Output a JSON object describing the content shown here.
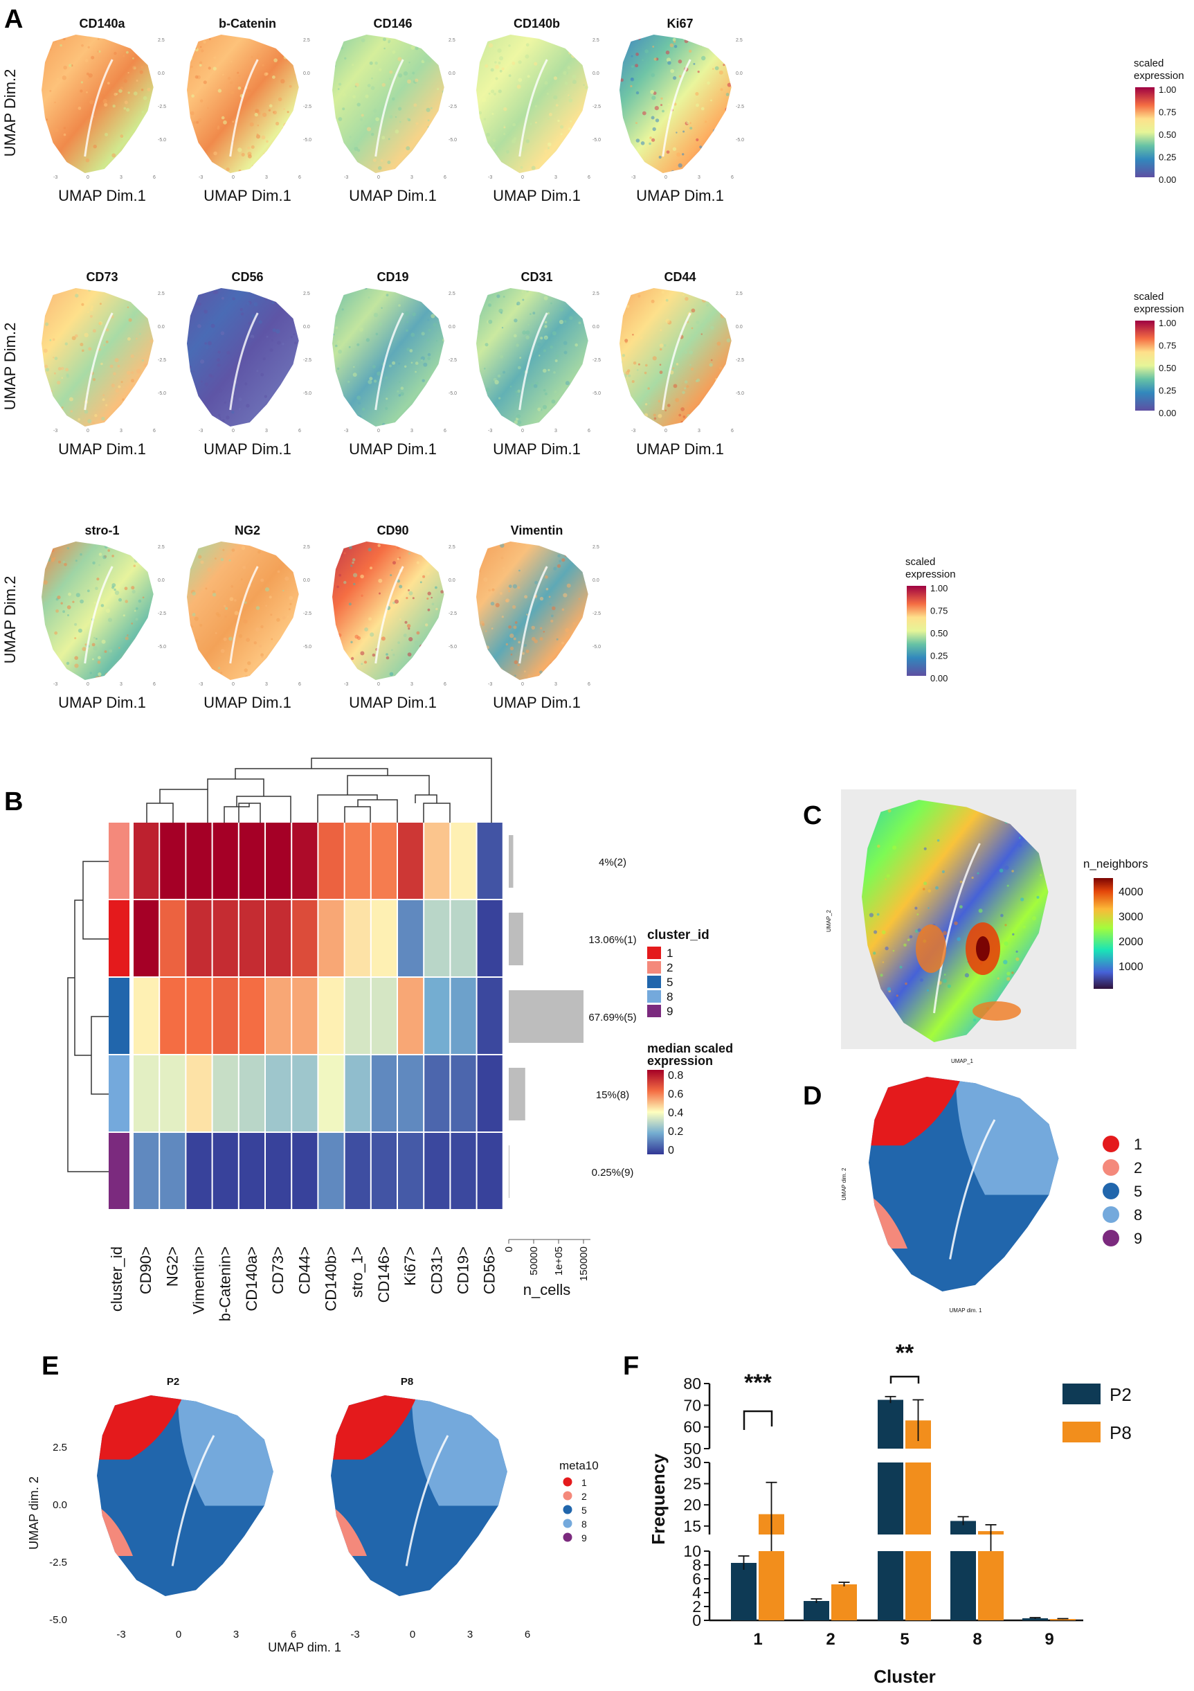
{
  "panels": {
    "A": {
      "letter": "A",
      "markers_row1": [
        "CD140a",
        "b-Catenin",
        "CD146",
        "CD140b",
        "Ki67"
      ],
      "markers_row2": [
        "CD73",
        "CD56",
        "CD19",
        "CD31",
        "CD44"
      ],
      "markers_row3": [
        "stro-1",
        "NG2",
        "CD90",
        "Vimentin"
      ],
      "xlabel": "UMAP Dim.1",
      "ylabel": "UMAP Dim.2",
      "legend_title_1": "scaled",
      "legend_title_2": "expression",
      "legend_ticks": [
        "1.00",
        "0.75",
        "0.50",
        "0.25",
        "0.00"
      ],
      "tick_x": [
        "-3",
        "0",
        "3",
        "6"
      ],
      "tick_y": [
        "2.5",
        "0.0",
        "-2.5",
        "-5.0"
      ]
    },
    "B": {
      "letter": "B",
      "columns": [
        "cluster_id",
        "CD90>",
        "NG2>",
        "Vimentin>",
        "b-Catenin>",
        "CD140a>",
        "CD73>",
        "CD44>",
        "CD140b>",
        "stro_1>",
        "CD146>",
        "Ki67>",
        "CD31>",
        "CD19>",
        "CD56>"
      ],
      "row_clusters": [
        "2",
        "1",
        "5",
        "8",
        "9"
      ],
      "row_labels": [
        "4%(2)",
        "13.06%(1)",
        "67.69%(5)",
        "15%(8)",
        "0.25%(9)"
      ],
      "n_cells_label": "n_cells",
      "n_cells_ticks": [
        "0",
        "50000",
        "1e+05",
        "150000"
      ],
      "cluster_legend_title": "cluster_id",
      "cluster_legend_items": [
        "1",
        "2",
        "5",
        "8",
        "9"
      ],
      "expr_legend_title_1": "median scaled",
      "expr_legend_title_2": "expression",
      "expr_legend_ticks": [
        "0.8",
        "0.6",
        "0.4",
        "0.2",
        "0"
      ]
    },
    "C": {
      "letter": "C",
      "xlabel": "UMAP_1",
      "ylabel": "UMAP_2",
      "legend_title": "n_neighbors",
      "legend_ticks": [
        "4000",
        "3000",
        "2000",
        "1000"
      ]
    },
    "D": {
      "letter": "D",
      "xlabel": "UMAP dim. 1",
      "ylabel": "UMAP dim. 2",
      "legend_items": [
        "1",
        "2",
        "5",
        "8",
        "9"
      ]
    },
    "E": {
      "letter": "E",
      "facet1": "P2",
      "facet2": "P8",
      "xlabel": "UMAP dim. 1",
      "ylabel": "UMAP dim. 2",
      "tick_x": [
        "-3",
        "0",
        "3",
        "6"
      ],
      "tick_y": [
        "2.5",
        "0.0",
        "-2.5",
        "-5.0"
      ],
      "legend_title": "meta10",
      "legend_items": [
        "1",
        "2",
        "5",
        "8",
        "9"
      ]
    },
    "F": {
      "letter": "F",
      "xlabel": "Cluster",
      "ylabel": "Frequency",
      "sig_1": "***",
      "sig_5": "**"
    }
  },
  "colors": {
    "cluster_1": "#e41a1c",
    "cluster_2": "#f4897b",
    "cluster_5": "#2166ac",
    "cluster_8": "#74a9dc",
    "cluster_9": "#7b2a7e",
    "P2": "#0e3a55",
    "P8": "#f28e1c",
    "n_cells_bar": "#bdbdbd"
  },
  "chart_data": [
    {
      "type": "heatmap",
      "panel": "B",
      "title": "",
      "columns": [
        "CD90>",
        "NG2>",
        "Vimentin>",
        "b-Catenin>",
        "CD140a>",
        "CD73>",
        "CD44>",
        "CD140b>",
        "stro_1>",
        "CD146>",
        "Ki67>",
        "CD31>",
        "CD19>",
        "CD56>"
      ],
      "rows": [
        "2",
        "1",
        "5",
        "8",
        "9"
      ],
      "values": [
        [
          0.74,
          0.84,
          0.84,
          0.84,
          0.84,
          0.8,
          0.78,
          0.62,
          0.58,
          0.58,
          0.7,
          0.48,
          0.42,
          0.05
        ],
        [
          0.8,
          0.62,
          0.72,
          0.72,
          0.72,
          0.72,
          0.66,
          0.52,
          0.44,
          0.42,
          0.14,
          0.3,
          0.3,
          0.02
        ],
        [
          0.42,
          0.6,
          0.6,
          0.62,
          0.6,
          0.52,
          0.52,
          0.42,
          0.34,
          0.34,
          0.52,
          0.2,
          0.18,
          0.03
        ],
        [
          0.36,
          0.36,
          0.44,
          0.32,
          0.3,
          0.26,
          0.26,
          0.38,
          0.24,
          0.14,
          0.14,
          0.08,
          0.08,
          0.02
        ],
        [
          0.14,
          0.14,
          0.02,
          0.02,
          0.02,
          0.02,
          0.02,
          0.14,
          0.04,
          0.05,
          0.06,
          0.03,
          0.03,
          0.02
        ]
      ],
      "n_cells": [
        9000,
        29000,
        150000,
        33000,
        600
      ],
      "n_cells_xlim": [
        0,
        150000
      ],
      "color_range": [
        0,
        0.8
      ]
    },
    {
      "type": "bar",
      "panel": "F",
      "xlabel": "Cluster",
      "ylabel": "Frequency",
      "categories": [
        "1",
        "2",
        "5",
        "8",
        "9"
      ],
      "series": [
        {
          "name": "P2",
          "values": [
            8.3,
            2.8,
            72.5,
            16.2,
            0.3
          ],
          "errors": [
            1.0,
            0.3,
            1.5,
            1.0,
            0.1
          ]
        },
        {
          "name": "P8",
          "values": [
            17.8,
            5.2,
            63.0,
            13.8,
            0.2
          ],
          "errors": [
            7.5,
            0.3,
            9.5,
            1.5,
            0.05
          ]
        }
      ],
      "broken_axis": [
        [
          0,
          10
        ],
        [
          13,
          30
        ],
        [
          50,
          80
        ]
      ],
      "y_ticks": [
        0,
        2,
        4,
        6,
        8,
        10,
        15,
        20,
        25,
        30,
        50,
        60,
        70,
        80
      ],
      "significance": [
        {
          "cluster": "1",
          "label": "***"
        },
        {
          "cluster": "5",
          "label": "**"
        }
      ]
    }
  ]
}
